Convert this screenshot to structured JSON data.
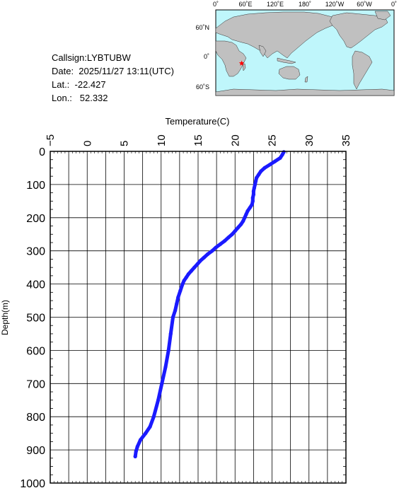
{
  "info": {
    "callsign": "Callsign:LYBTUBW",
    "date": "Date:  2025/11/27 13:11(UTC)",
    "lat": "Lat.:  -22.427",
    "lon": "Lon.:   52.332"
  },
  "map": {
    "lon_labels": [
      "0˚",
      "60˚E",
      "120˚E",
      "180˚",
      "120˚W",
      "60˚W",
      "0˚"
    ],
    "lat_labels": [
      "60˚N",
      "0˚",
      "60˚S"
    ],
    "marker": {
      "lat": -22.427,
      "lon": 52.332
    },
    "colors": {
      "ocean": "#bff6fb",
      "land": "#c0c0c0",
      "marker": "#ff0000"
    }
  },
  "chart_data": {
    "type": "line",
    "xlabel": "Temperature(C)",
    "ylabel": "Depth(m)",
    "xlim": [
      -5,
      35
    ],
    "ylim": [
      0,
      1000
    ],
    "y_inverted": true,
    "x_ticks": [
      -5,
      0,
      5,
      10,
      15,
      20,
      25,
      30,
      35
    ],
    "y_ticks": [
      0,
      100,
      200,
      300,
      400,
      500,
      600,
      700,
      800,
      900,
      1000
    ],
    "grid": true,
    "line_color": "#1a1aff",
    "series": [
      {
        "points": [
          [
            26.6,
            2
          ],
          [
            26.4,
            10
          ],
          [
            26.1,
            20
          ],
          [
            25.4,
            30
          ],
          [
            24.7,
            40
          ],
          [
            24.0,
            50
          ],
          [
            23.5,
            60
          ],
          [
            23.2,
            70
          ],
          [
            22.9,
            80
          ],
          [
            22.8,
            90
          ],
          [
            22.7,
            100
          ],
          [
            22.6,
            110
          ],
          [
            22.5,
            120
          ],
          [
            22.5,
            130
          ],
          [
            22.4,
            140
          ],
          [
            22.4,
            150
          ],
          [
            22.3,
            160
          ],
          [
            22.0,
            170
          ],
          [
            21.7,
            180
          ],
          [
            21.5,
            190
          ],
          [
            21.3,
            200
          ],
          [
            21.1,
            210
          ],
          [
            20.8,
            220
          ],
          [
            20.4,
            230
          ],
          [
            20.0,
            240
          ],
          [
            19.6,
            250
          ],
          [
            19.1,
            260
          ],
          [
            18.6,
            270
          ],
          [
            18.0,
            280
          ],
          [
            17.4,
            290
          ],
          [
            16.9,
            300
          ],
          [
            16.3,
            310
          ],
          [
            15.8,
            320
          ],
          [
            15.3,
            330
          ],
          [
            14.9,
            340
          ],
          [
            14.5,
            350
          ],
          [
            14.1,
            360
          ],
          [
            13.7,
            370
          ],
          [
            13.4,
            380
          ],
          [
            13.1,
            390
          ],
          [
            12.9,
            400
          ],
          [
            12.6,
            420
          ],
          [
            12.3,
            440
          ],
          [
            12.1,
            460
          ],
          [
            11.9,
            480
          ],
          [
            11.6,
            500
          ],
          [
            11.3,
            550
          ],
          [
            11.0,
            600
          ],
          [
            10.6,
            650
          ],
          [
            10.1,
            700
          ],
          [
            9.6,
            750
          ],
          [
            9.0,
            800
          ],
          [
            8.5,
            830
          ],
          [
            7.9,
            850
          ],
          [
            7.2,
            870
          ],
          [
            6.8,
            890
          ],
          [
            6.6,
            905
          ],
          [
            6.5,
            920
          ]
        ]
      }
    ]
  }
}
